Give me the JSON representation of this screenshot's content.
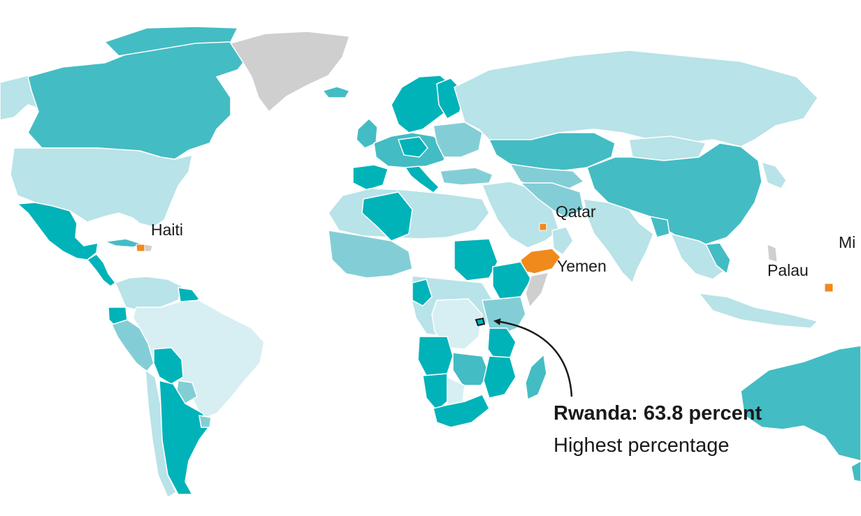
{
  "map": {
    "colors": {
      "ocean": "#ffffff",
      "very_high": "#00b3b9",
      "high": "#44bcc4",
      "medium": "#83ced6",
      "low": "#b8e3e8",
      "very_low": "#d7eff2",
      "lowest_highlight": "#f08a1d",
      "no_data": "#cfcfcf",
      "border": "#ffffff",
      "ink": "#1a1a1a"
    },
    "labels": {
      "haiti": "Haiti",
      "qatar": "Qatar",
      "yemen": "Yemen",
      "palau": "Palau",
      "micronesia_partial": "Mi"
    },
    "callout": {
      "title": "Rwanda: 63.8 percent",
      "subtitle": "Highest percentage"
    }
  }
}
